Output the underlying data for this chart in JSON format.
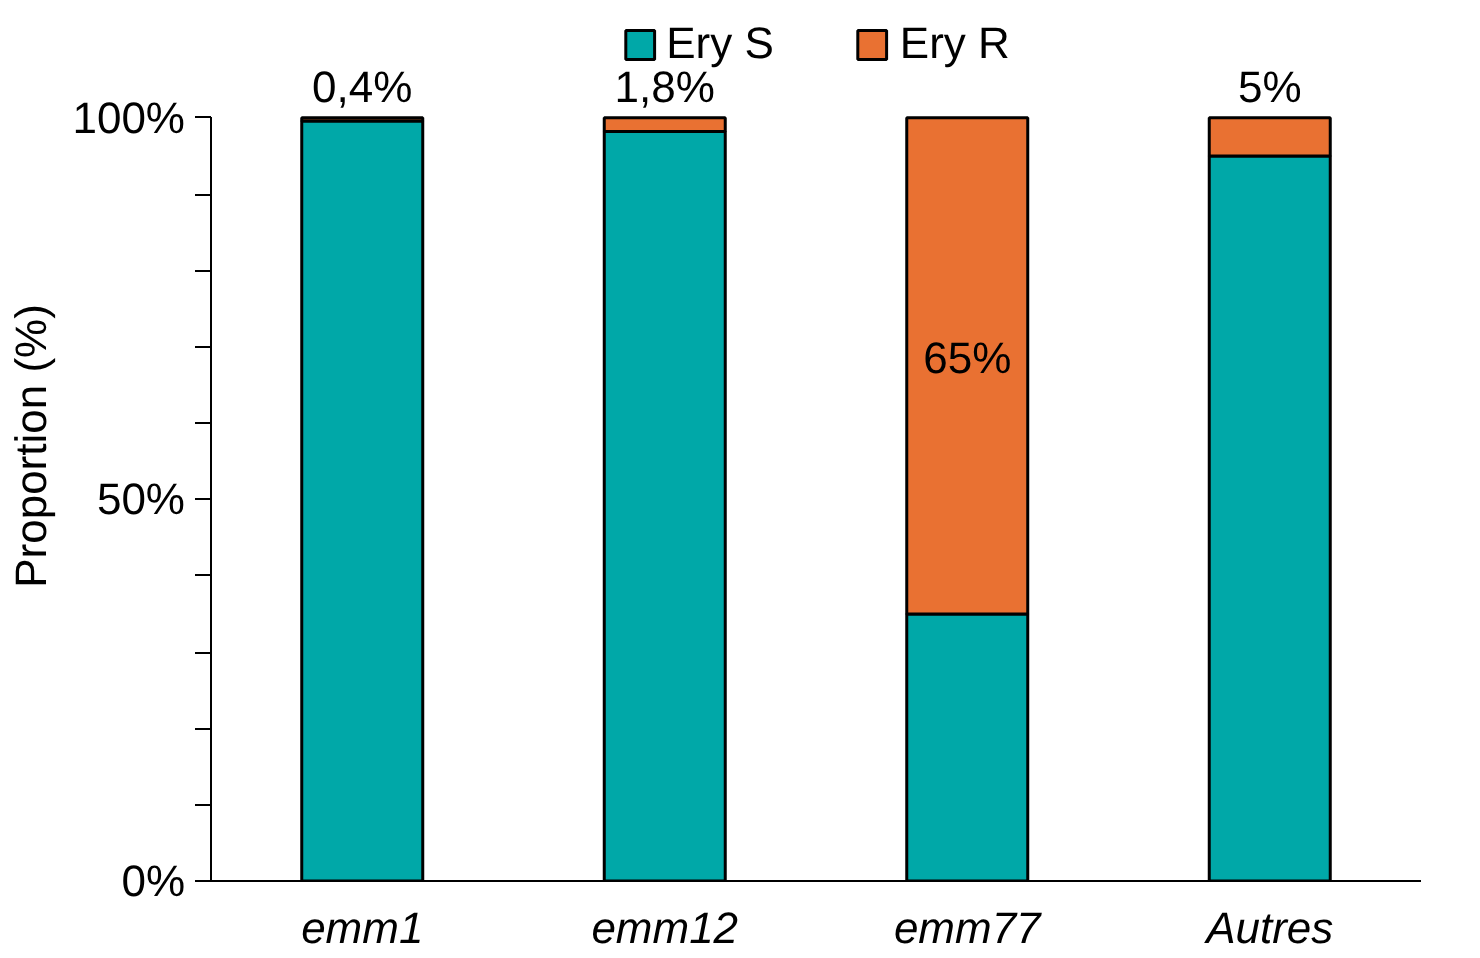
{
  "chart_data": {
    "type": "bar",
    "stacked": true,
    "ylabel": "Proportion (%)",
    "categories": [
      "emm1",
      "emm12",
      "emm77",
      "Autres"
    ],
    "series": [
      {
        "name": "Ery S",
        "color": "#00a8a8",
        "values": [
          99.6,
          98.2,
          35,
          95
        ]
      },
      {
        "name": "Ery R",
        "color": "#e97132",
        "values": [
          0.4,
          1.8,
          65,
          5
        ],
        "value_labels": [
          "0,4%",
          "1,8%",
          "65%",
          "5%"
        ]
      }
    ],
    "ylim": [
      0,
      100
    ],
    "yticks": [
      {
        "value": 0,
        "label": "0%"
      },
      {
        "value": 10,
        "label": null
      },
      {
        "value": 20,
        "label": null
      },
      {
        "value": 30,
        "label": null
      },
      {
        "value": 40,
        "label": null
      },
      {
        "value": 50,
        "label": "50%"
      },
      {
        "value": 60,
        "label": null
      },
      {
        "value": 70,
        "label": null
      },
      {
        "value": 80,
        "label": null
      },
      {
        "value": 90,
        "label": null
      },
      {
        "value": 100,
        "label": "100%"
      }
    ],
    "grid": false,
    "legend": "top"
  }
}
